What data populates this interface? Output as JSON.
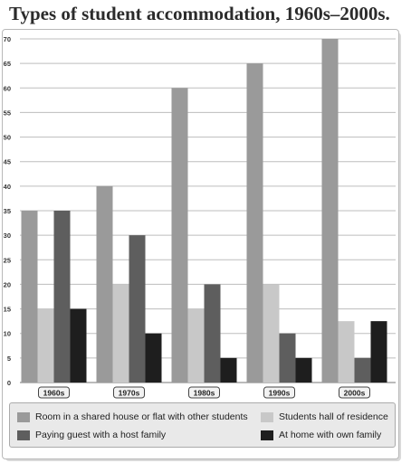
{
  "chart_data": {
    "type": "bar",
    "title": "Types of student accommodation, 1960s–2000s.",
    "categories": [
      "1960s",
      "1970s",
      "1980s",
      "1990s",
      "2000s"
    ],
    "ylim": [
      0,
      70
    ],
    "yticks": [
      0,
      5,
      10,
      15,
      20,
      25,
      30,
      35,
      40,
      45,
      50,
      55,
      60,
      65,
      70
    ],
    "grid": true,
    "legend_position": "bottom",
    "series": [
      {
        "name": "Room in a shared house or flat with other students",
        "color": "#9a9a9a",
        "values": [
          35,
          40,
          60,
          65,
          70
        ]
      },
      {
        "name": "Students hall of residence",
        "color": "#c8c8c8",
        "values": [
          15,
          20,
          15,
          20,
          12.5
        ]
      },
      {
        "name": "Paying guest with a host family",
        "color": "#5e5e5e",
        "values": [
          35,
          30,
          20,
          10,
          5
        ]
      },
      {
        "name": "At home with own family",
        "color": "#1e1e1e",
        "values": [
          15,
          10,
          5,
          5,
          12.5
        ]
      }
    ]
  }
}
